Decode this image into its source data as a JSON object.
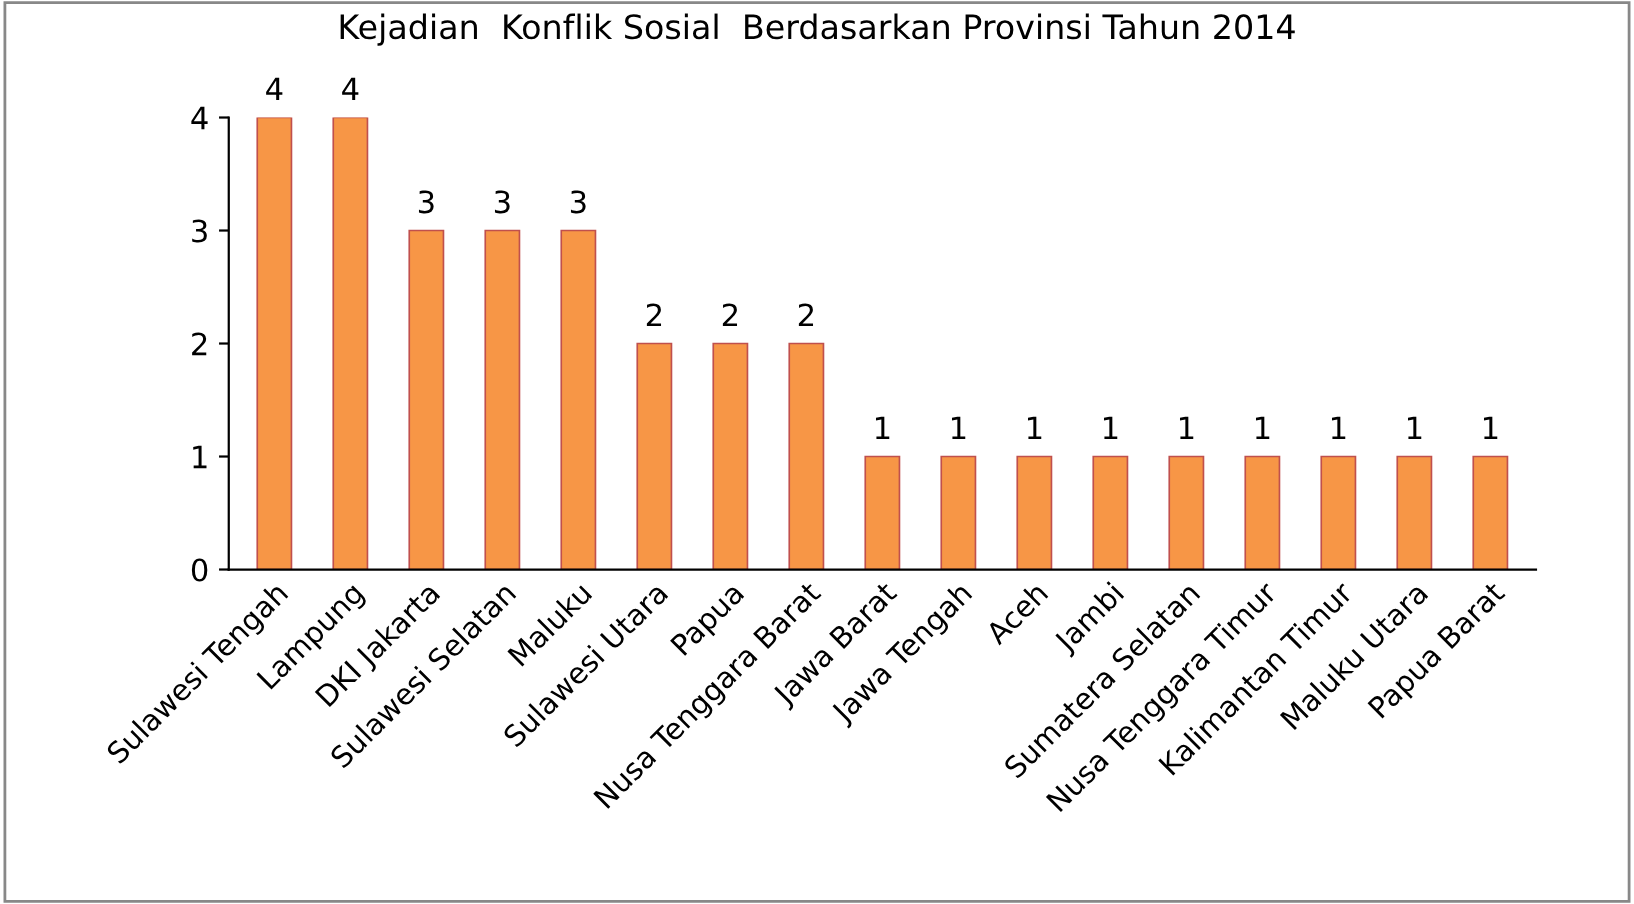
{
  "chart_data": {
    "type": "bar",
    "title": "Kejadian  Konflik Sosial  Berdasarkan Provinsi Tahun 2014",
    "categories": [
      "Sulawesi Tengah",
      "Lampung",
      "DKI Jakarta",
      "Sulawesi Selatan",
      "Maluku",
      "Sulawesi Utara",
      "Papua",
      "Nusa Tenggara Barat",
      "Jawa Barat",
      "Jawa Tengah",
      "Aceh",
      "Jambi",
      "Sumatera Selatan",
      "Nusa Tenggara Timur",
      "Kalimantan Timur",
      "Maluku Utara",
      "Papua Barat"
    ],
    "values": [
      4,
      4,
      3,
      3,
      3,
      2,
      2,
      2,
      1,
      1,
      1,
      1,
      1,
      1,
      1,
      1,
      1
    ],
    "color": "#f79646",
    "ylim": [
      0,
      4
    ],
    "yticks": [
      0,
      1,
      2,
      3,
      4
    ],
    "grid": false,
    "data_labels": true
  }
}
